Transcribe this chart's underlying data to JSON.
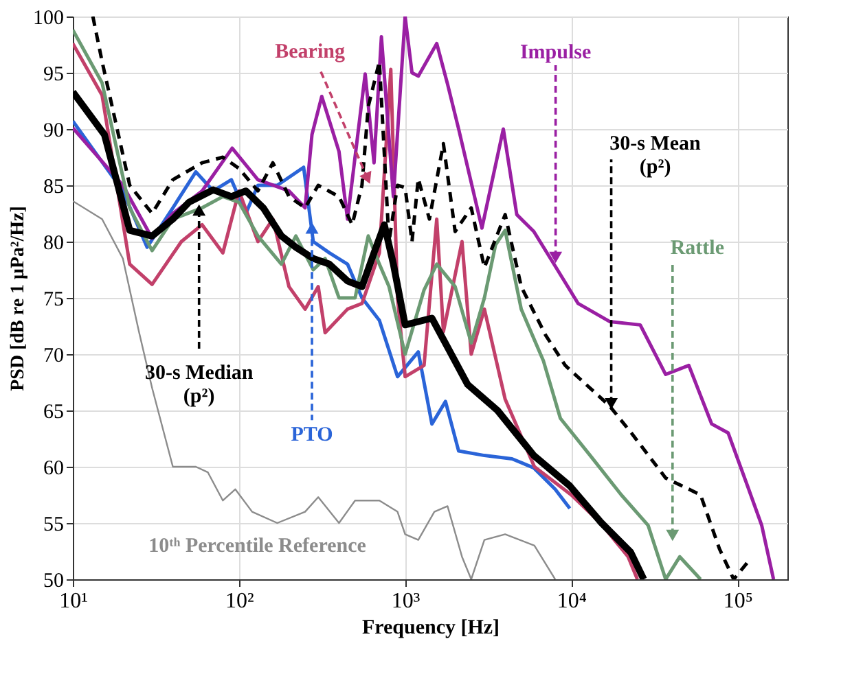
{
  "chart_data": {
    "type": "line",
    "xlabel": "Frequency [Hz]",
    "ylabel": "PSD [dB re 1 μPa²/Hz]",
    "log": "x",
    "grid": true,
    "line_style": "solid",
    "xlim": [
      10,
      200000
    ],
    "xticks": [
      {
        "value": 10,
        "label": "10¹"
      },
      {
        "value": 100,
        "label": "10²"
      },
      {
        "value": 1000,
        "label": "10³"
      },
      {
        "value": 10000,
        "label": "10⁴"
      },
      {
        "value": 100000,
        "label": "10⁵"
      }
    ],
    "ylim": [
      50,
      100
    ],
    "yticks": [
      50,
      55,
      60,
      65,
      70,
      75,
      80,
      85,
      90,
      95,
      100
    ],
    "series": [
      {
        "color": "#2a64d8",
        "x": [
          10,
          20,
          28,
          40,
          55,
          70,
          90,
          110,
          130,
          170,
          245,
          280,
          350,
          450,
          550,
          700,
          900,
          1200,
          1450,
          1750,
          2100,
          3000,
          4400,
          5950,
          8000,
          9800
        ],
        "values": [
          90.7,
          84.5,
          79.5,
          83,
          86.2,
          84.5,
          85.5,
          82.5,
          85,
          85,
          86.6,
          80,
          79,
          78,
          75,
          73,
          68,
          70.2,
          63.8,
          65.8,
          61.4,
          61,
          60.7,
          59.9,
          58,
          56.3
        ]
      },
      {
        "color": "#c2406a",
        "x": [
          10,
          15,
          22,
          30,
          45,
          60,
          80,
          100,
          130,
          160,
          200,
          250,
          300,
          330,
          450,
          550,
          700,
          820,
          900,
          1000,
          1300,
          1550,
          1700,
          2200,
          2500,
          3000,
          4000,
          6000,
          10000,
          15000,
          22000,
          25000
        ],
        "values": [
          97.6,
          93,
          78,
          76.2,
          80,
          81.5,
          79,
          84.5,
          80,
          82,
          76,
          74,
          76,
          71.9,
          74,
          74.5,
          79,
          95.3,
          75,
          68,
          69,
          82,
          72,
          80,
          70,
          74,
          66,
          60,
          57.5,
          55,
          52,
          50
        ]
      },
      {
        "color": "#9a1fa3",
        "x": [
          10,
          20,
          30,
          40,
          60,
          91,
          130,
          200,
          250,
          275,
          315,
          400,
          450,
          575,
          650,
          720,
          850,
          1000,
          1100,
          1200,
          1550,
          1800,
          2100,
          2900,
          3900,
          4700,
          5950,
          8100,
          11000,
          17000,
          26000,
          37000,
          51000,
          70000,
          88000,
          115000,
          140000,
          165000
        ],
        "values": [
          90.1,
          85,
          80.3,
          82.5,
          84.5,
          88.3,
          85.5,
          84.5,
          83,
          89.5,
          92.9,
          88,
          82,
          94.9,
          87,
          98.2,
          84,
          100,
          95,
          94.7,
          97.6,
          94,
          90,
          81.2,
          90,
          82.4,
          80.9,
          77.7,
          74.5,
          72.9,
          72.6,
          68.2,
          69,
          63.8,
          63,
          58.3,
          54.8,
          50
        ]
      },
      {
        "color": "#6b9a73",
        "x": [
          10,
          15,
          22,
          30,
          40,
          60,
          80,
          100,
          130,
          180,
          220,
          280,
          330,
          400,
          500,
          600,
          700,
          800,
          1000,
          1300,
          1550,
          2000,
          2500,
          3000,
          3500,
          4000,
          5000,
          6800,
          8600,
          13000,
          20000,
          29000,
          37000,
          45000,
          60000
        ],
        "values": [
          98.8,
          94.1,
          83,
          79.2,
          82,
          83,
          84,
          83.5,
          80.5,
          78,
          80.5,
          77.5,
          78.5,
          75,
          75,
          80.5,
          78,
          76,
          70,
          75.7,
          78,
          76,
          71,
          75,
          79.7,
          81,
          74,
          69.4,
          64.3,
          61,
          57.5,
          54.8,
          50,
          52,
          50
        ]
      },
      {
        "color": "#000000",
        "line_style": "dashed",
        "x": [
          13.2,
          15,
          22,
          30,
          40,
          60,
          80,
          100,
          130,
          160,
          200,
          250,
          300,
          400,
          480,
          550,
          600,
          700,
          800,
          900,
          1000,
          1100,
          1200,
          1400,
          1700,
          2000,
          2500,
          3000,
          4000,
          5000,
          7000,
          9200,
          17000,
          23000,
          37000,
          60000,
          78000,
          95000,
          115000
        ],
        "values": [
          100,
          96,
          85,
          82.5,
          85.5,
          87,
          87.5,
          86.5,
          84.5,
          87,
          84,
          83,
          85,
          84,
          81.5,
          85,
          92,
          96,
          80,
          85,
          84.8,
          80,
          85.6,
          82,
          88.7,
          80.9,
          83,
          77.7,
          82.4,
          76,
          71.7,
          69,
          65.4,
          63,
          59,
          57.5,
          52.7,
          50,
          51.5
        ]
      },
      {
        "color": "#000000",
        "x": [
          10,
          15.5,
          22,
          30,
          40,
          50,
          70,
          90,
          110,
          140,
          180,
          220,
          280,
          350,
          450,
          550,
          650,
          750,
          850,
          1000,
          1450,
          2380,
          3600,
          5950,
          9800,
          15000,
          22800,
          27300
        ],
        "values": [
          93.3,
          89.5,
          81,
          80.5,
          82,
          83.5,
          84.6,
          84,
          84.5,
          83,
          80.5,
          79.5,
          78.5,
          78,
          76.5,
          76,
          79,
          81.5,
          78,
          72.6,
          73.2,
          67.3,
          65,
          61,
          58.3,
          55.1,
          52.4,
          50
        ]
      },
      {
        "color": "#8c8c8c",
        "x": [
          10,
          15,
          20,
          25,
          30,
          40,
          55,
          65,
          80,
          95,
          120,
          170,
          250,
          300,
          400,
          500,
          700,
          900,
          1000,
          1200,
          1500,
          1800,
          2200,
          2500,
          3000,
          4000,
          6000,
          8000
        ],
        "values": [
          83.6,
          82,
          78.5,
          72,
          67,
          60,
          60,
          59.5,
          57,
          58,
          56,
          55,
          56,
          57.3,
          55,
          57,
          57,
          56,
          54,
          53.5,
          56,
          56.5,
          52,
          50,
          53.5,
          54,
          53,
          50
        ]
      }
    ],
    "annotations": [
      {
        "text": "PTO",
        "x": 275,
        "y": 81.2
      },
      {
        "text": "Bearing",
        "x": 595,
        "y": 85.6
      },
      {
        "text": "Impulse",
        "x": 8050,
        "y": 78.6
      },
      {
        "text": "Rattle",
        "x": 40700,
        "y": 53.9
      },
      {
        "text": "30-s Mean\n(p²)",
        "x": 17400,
        "y": 65.6
      },
      {
        "text": "30-s Median\n(p²)",
        "x": 57.5,
        "y": 82.8
      },
      {
        "text": "10ᵗʰ Percentile Reference",
        "x": 129,
        "y": 56
      }
    ]
  }
}
